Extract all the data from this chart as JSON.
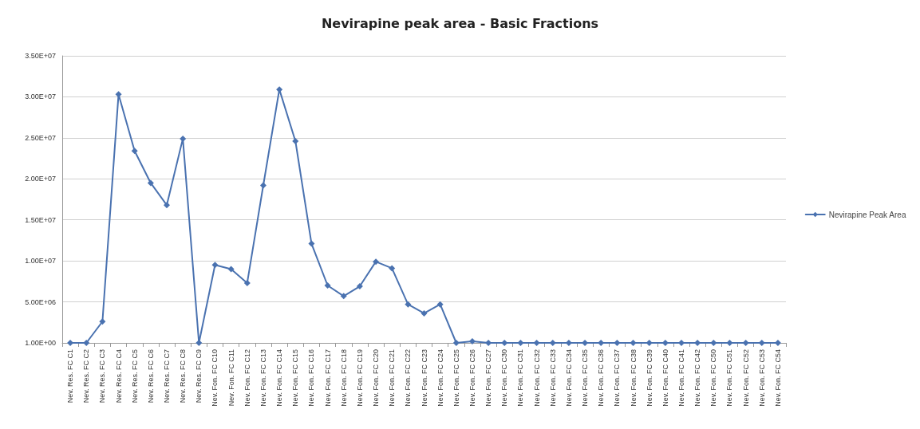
{
  "chart_data": {
    "type": "line",
    "title": "Nevirapine peak area - Basic Fractions",
    "categories": [
      "Nev. Res. FC C1",
      "Nev. Res. FC C2",
      "Nev. Res. FC C3",
      "Nev. Res. FC C4",
      "Nev. Res. FC C5",
      "Nev. Res. FC C6",
      "Nev. Res. FC C7",
      "Nev. Res. FC C8",
      "Nev. Res. FC C9",
      "Nev. Fon. FC C10",
      "Nev. Fon. FC C11",
      "Nev. Fon. FC C12",
      "Nev. Fon. FC C13",
      "Nev. Fon. FC C14",
      "Nev. Fon. FC C15",
      "Nev. Fon. FC C16",
      "Nev. Fon. FC C17",
      "Nev. Fon. FC C18",
      "Nev. Fon. FC C19",
      "Nev. Fon. FC C20",
      "Nev. Fon. FC C21",
      "Nev. Fon. FC C22",
      "Nev. Fon. FC C23",
      "Nev. Fon. FC C24",
      "Nev. Fon. FC C25",
      "Nev. Fon. FC C26",
      "Nev. Fon. FC C27",
      "Nev. Fon. FC C30",
      "Nev. Fon. FC C31",
      "Nev. Fon. FC C32",
      "Nev. Fon. FC C33",
      "Nev. Fon. FC C34",
      "Nev. Fon. FC C35",
      "Nev. Fon. FC C36",
      "Nev. Fon. FC C37",
      "Nev. Fon. FC C38",
      "Nev. Fon. FC C39",
      "Nev. Fon. FC C40",
      "Nev. Fon. FC C41",
      "Nev. Fon. FC C42",
      "Nev. Fon. FC C50",
      "Nev. Fon. FC C51",
      "Nev. Fon. FC C52",
      "Nev. Fon. FC C53",
      "Nev. Fon. FC C54"
    ],
    "series": [
      {
        "name": "Nevirapine Peak Area",
        "color": "#4a72b0",
        "values": [
          1,
          1,
          2600000,
          30300000,
          23400000,
          19500000,
          16800000,
          24900000,
          1,
          9500000,
          9000000,
          7300000,
          19200000,
          30900000,
          24600000,
          12100000,
          7000000,
          5700000,
          6900000,
          9900000,
          9100000,
          4700000,
          3600000,
          4700000,
          1,
          200000,
          1,
          1,
          1,
          1,
          1,
          1,
          1,
          1,
          1,
          1,
          1,
          1,
          1,
          1,
          1,
          1,
          1,
          1,
          1
        ]
      }
    ],
    "ylim": [
      1,
      35000000
    ],
    "yticks": [
      {
        "value": 1,
        "label": "1.00E+00"
      },
      {
        "value": 5000000,
        "label": "5.00E+06"
      },
      {
        "value": 10000000,
        "label": "1.00E+07"
      },
      {
        "value": 15000000,
        "label": "1.50E+07"
      },
      {
        "value": 20000000,
        "label": "2.00E+07"
      },
      {
        "value": 25000000,
        "label": "2.50E+07"
      },
      {
        "value": 30000000,
        "label": "3.00E+07"
      },
      {
        "value": 35000000,
        "label": "3.50E+07"
      }
    ],
    "grid": "y",
    "legend": "right",
    "marker": "diamond",
    "line_style": "solid"
  }
}
